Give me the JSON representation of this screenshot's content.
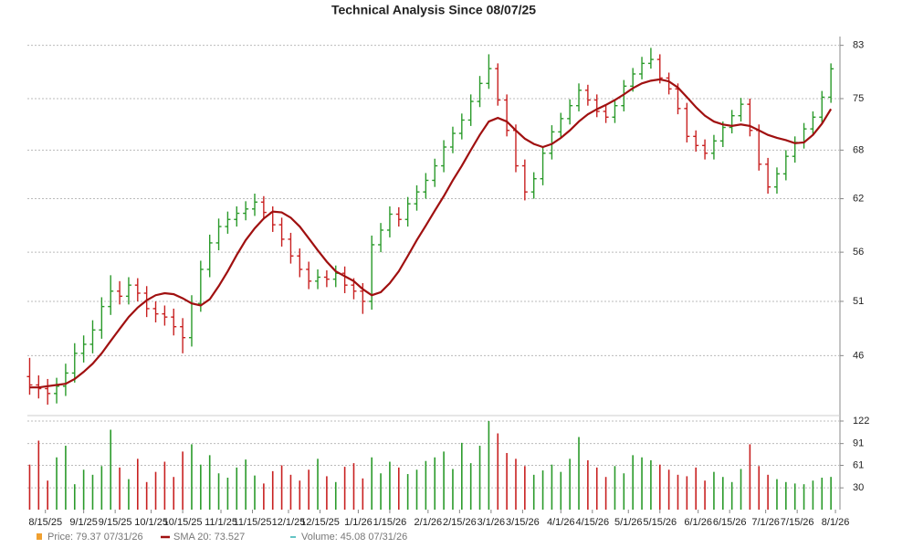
{
  "chart_data": {
    "type": "ohlc",
    "title": "Technical Analysis Since 08/07/25",
    "x": [
      1,
      5,
      9,
      13,
      17,
      21,
      25,
      29,
      33,
      37,
      41,
      45,
      49,
      53,
      57,
      61,
      65,
      69,
      73,
      77,
      81,
      85,
      89,
      93,
      97,
      101,
      105,
      109,
      113,
      117,
      121,
      125,
      129,
      133,
      137,
      141,
      145,
      149,
      153,
      157,
      161,
      165,
      169,
      173,
      177,
      181,
      185,
      189,
      193,
      197,
      201,
      205,
      209,
      213,
      217,
      221,
      225,
      229,
      233,
      237,
      241,
      245,
      249,
      253,
      257,
      261,
      265,
      269,
      273,
      277,
      281,
      285,
      289,
      293,
      297,
      301,
      305,
      309,
      313,
      317,
      321,
      325,
      329,
      333,
      337,
      341,
      345,
      349,
      353,
      357
    ],
    "xlim": [
      0,
      361
    ],
    "xticks": [
      {
        "value": 8,
        "label": "8/15/25"
      },
      {
        "value": 25,
        "label": "9/1/25"
      },
      {
        "value": 39,
        "label": "9/15/25"
      },
      {
        "value": 55,
        "label": "10/1/25"
      },
      {
        "value": 69,
        "label": "10/15/25"
      },
      {
        "value": 86,
        "label": "11/1/25"
      },
      {
        "value": 100,
        "label": "11/15/25"
      },
      {
        "value": 116,
        "label": "12/1/25"
      },
      {
        "value": 130,
        "label": "12/15/25"
      },
      {
        "value": 147,
        "label": "1/1/26"
      },
      {
        "value": 161,
        "label": "1/15/26"
      },
      {
        "value": 178,
        "label": "2/1/26"
      },
      {
        "value": 192,
        "label": "2/15/26"
      },
      {
        "value": 206,
        "label": "3/1/26"
      },
      {
        "value": 220,
        "label": "3/15/26"
      },
      {
        "value": 237,
        "label": "4/1/26"
      },
      {
        "value": 251,
        "label": "4/15/26"
      },
      {
        "value": 267,
        "label": "5/1/26"
      },
      {
        "value": 281,
        "label": "5/15/26"
      },
      {
        "value": 298,
        "label": "6/1/26"
      },
      {
        "value": 312,
        "label": "6/15/26"
      },
      {
        "value": 328,
        "label": "7/1/26"
      },
      {
        "value": 342,
        "label": "7/15/26"
      },
      {
        "value": 359,
        "label": "8/1/26"
      }
    ],
    "ylim": [
      41.4,
      84.4
    ],
    "yticks": [
      46,
      51,
      56,
      62,
      68,
      75,
      83
    ],
    "log_y": true,
    "y2lim": [
      0,
      122
    ],
    "y2ticks": [
      30,
      61,
      91,
      122
    ],
    "grid": true,
    "up_color": "#2a9a2a",
    "down_color": "#c82020",
    "series": [
      {
        "name": "Price: 79.37  07/31/26",
        "color": "#f0a030",
        "open": [
          44.2,
          43.5,
          43.2,
          42.8,
          43.4,
          44.5,
          46.2,
          47.0,
          48.3,
          50.5,
          52.0,
          51.5,
          52.6,
          51.8,
          50.3,
          49.8,
          49.5,
          48.6,
          47.6,
          50.8,
          54.2,
          57.0,
          58.8,
          59.6,
          60.3,
          60.8,
          61.6,
          60.4,
          59.0,
          57.4,
          55.6,
          54.2,
          53.0,
          53.4,
          53.2,
          53.8,
          52.6,
          52.0,
          51.0,
          56.8,
          58.4,
          60.2,
          59.6,
          61.4,
          62.8,
          64.2,
          66.0,
          68.4,
          70.2,
          72.0,
          74.6,
          77.2,
          79.4,
          74.8,
          70.6,
          66.0,
          62.8,
          64.4,
          67.6,
          70.4,
          72.2,
          74.0,
          76.2,
          74.8,
          73.2,
          72.4,
          74.0,
          76.8,
          78.6,
          80.2,
          80.8,
          78.0,
          76.4,
          73.6,
          69.8,
          68.6,
          67.6,
          69.2,
          71.0,
          72.6,
          74.2,
          70.6,
          66.2,
          63.4,
          65.0,
          67.2,
          69.0,
          70.8,
          72.4,
          75.2
        ],
        "high": [
          45.8,
          44.3,
          44.0,
          44.1,
          45.3,
          47.1,
          47.8,
          49.2,
          51.4,
          53.6,
          53.0,
          53.4,
          53.3,
          52.5,
          51.0,
          50.6,
          50.3,
          49.4,
          51.6,
          55.1,
          57.9,
          59.7,
          60.5,
          61.1,
          61.7,
          62.6,
          62.3,
          61.1,
          59.8,
          58.1,
          56.4,
          55.0,
          54.2,
          54.1,
          54.6,
          54.5,
          53.3,
          52.8,
          57.8,
          59.2,
          61.1,
          61.0,
          62.2,
          63.6,
          65.1,
          66.9,
          69.3,
          71.1,
          72.9,
          75.6,
          78.3,
          81.6,
          80.2,
          75.6,
          71.4,
          66.8,
          65.2,
          68.4,
          71.3,
          73.0,
          74.9,
          77.2,
          77.0,
          75.6,
          74.0,
          74.8,
          77.7,
          79.5,
          81.2,
          82.6,
          81.6,
          78.8,
          77.2,
          74.4,
          70.6,
          69.4,
          70.0,
          71.8,
          73.4,
          75.1,
          75.0,
          71.4,
          67.0,
          65.8,
          68.0,
          69.8,
          71.6,
          73.2,
          76.1,
          80.2
        ],
        "low": [
          42.7,
          42.4,
          41.9,
          42.0,
          42.6,
          43.7,
          45.4,
          46.2,
          47.5,
          49.7,
          50.7,
          50.7,
          51.0,
          49.5,
          49.0,
          48.7,
          47.8,
          46.2,
          46.8,
          50.0,
          53.4,
          56.2,
          58.0,
          58.8,
          59.5,
          60.0,
          59.6,
          58.2,
          56.6,
          54.8,
          53.4,
          52.2,
          52.2,
          52.4,
          52.4,
          51.8,
          51.2,
          49.8,
          50.2,
          56.0,
          57.6,
          58.8,
          58.8,
          60.6,
          62.0,
          63.4,
          65.2,
          67.6,
          69.4,
          71.2,
          73.8,
          76.4,
          74.0,
          69.8,
          65.2,
          61.8,
          62.0,
          63.6,
          66.8,
          69.6,
          71.4,
          73.2,
          74.0,
          72.4,
          71.6,
          71.6,
          73.2,
          76.0,
          77.8,
          79.4,
          77.2,
          75.6,
          72.8,
          69.0,
          67.8,
          66.8,
          66.8,
          68.4,
          70.2,
          71.8,
          69.8,
          65.4,
          62.6,
          62.6,
          64.2,
          66.4,
          68.2,
          70.0,
          71.6,
          74.4
        ],
        "close": [
          43.5,
          43.2,
          42.8,
          43.4,
          44.5,
          46.2,
          47.0,
          48.3,
          50.5,
          52.0,
          51.5,
          52.6,
          51.8,
          50.3,
          49.8,
          49.5,
          48.6,
          47.6,
          50.8,
          54.2,
          57.0,
          58.8,
          59.6,
          60.3,
          60.8,
          61.6,
          60.4,
          59.0,
          57.4,
          55.6,
          54.2,
          53.0,
          53.4,
          53.2,
          53.8,
          52.6,
          52.0,
          51.0,
          56.8,
          58.4,
          60.2,
          59.6,
          61.4,
          62.8,
          64.2,
          66.0,
          68.4,
          70.2,
          72.0,
          74.6,
          77.2,
          79.4,
          74.8,
          70.6,
          66.0,
          62.8,
          64.4,
          67.6,
          70.4,
          72.2,
          74.0,
          76.2,
          74.8,
          73.2,
          72.4,
          74.0,
          76.8,
          78.6,
          80.2,
          80.8,
          78.0,
          76.4,
          73.6,
          69.8,
          68.6,
          67.6,
          69.2,
          71.0,
          72.6,
          74.2,
          70.6,
          66.2,
          63.4,
          65.0,
          67.2,
          69.0,
          70.8,
          72.4,
          75.2,
          79.37
        ]
      },
      {
        "name": "SMA 20: 73.527",
        "color": "#a01010",
        "values": [
          43.3,
          43.3,
          43.4,
          43.5,
          43.6,
          44.0,
          44.6,
          45.3,
          46.2,
          47.3,
          48.4,
          49.5,
          50.4,
          51.1,
          51.6,
          51.8,
          51.7,
          51.3,
          50.8,
          50.6,
          51.2,
          52.5,
          54.0,
          55.7,
          57.3,
          58.6,
          59.7,
          60.5,
          60.4,
          59.8,
          58.8,
          57.5,
          56.2,
          55.0,
          54.0,
          53.5,
          53.0,
          52.2,
          51.6,
          51.9,
          52.8,
          54.0,
          55.6,
          57.3,
          58.9,
          60.6,
          62.3,
          64.2,
          66.0,
          68.0,
          70.0,
          71.8,
          72.3,
          71.8,
          70.6,
          69.5,
          68.8,
          68.4,
          68.8,
          69.6,
          70.6,
          71.8,
          72.8,
          73.5,
          74.1,
          74.8,
          75.6,
          76.5,
          77.2,
          77.6,
          77.8,
          77.5,
          76.6,
          75.2,
          73.8,
          72.6,
          71.8,
          71.4,
          71.2,
          71.4,
          71.2,
          70.6,
          70.0,
          69.6,
          69.3,
          68.9,
          69.0,
          70.0,
          71.5,
          73.527
        ]
      },
      {
        "name": "Volume: 45.08  07/31/26",
        "color": "#30b0b0",
        "axis": "y2",
        "values": [
          62,
          95,
          40,
          72,
          88,
          35,
          55,
          48,
          60,
          110,
          58,
          42,
          70,
          38,
          52,
          66,
          45,
          80,
          90,
          62,
          75,
          50,
          44,
          58,
          69,
          47,
          36,
          53,
          61,
          48,
          40,
          55,
          70,
          46,
          38,
          59,
          64,
          43,
          72,
          50,
          66,
          58,
          49,
          55,
          67,
          72,
          80,
          56,
          92,
          64,
          88,
          122,
          105,
          78,
          70,
          60,
          48,
          54,
          62,
          52,
          70,
          100,
          68,
          58,
          45,
          60,
          50,
          75,
          72,
          68,
          62,
          55,
          48,
          46,
          58,
          40,
          52,
          45,
          38,
          56,
          90,
          60,
          48,
          42,
          38,
          36,
          35,
          40,
          44,
          45.08
        ]
      }
    ]
  }
}
